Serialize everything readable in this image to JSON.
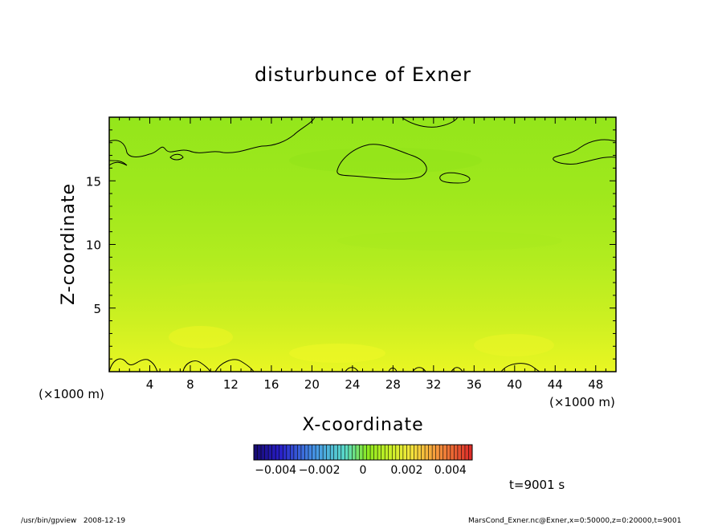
{
  "chart_data": {
    "type": "heatmap",
    "title": "disturbunce of Exner",
    "xlabel": "X-coordinate",
    "ylabel": "Z-coordinate",
    "x_unit_left": "(×1000 m)",
    "x_unit_right": "(×1000 m)",
    "xlim": [
      0,
      50
    ],
    "ylim": [
      0,
      20
    ],
    "x_ticks": [
      4,
      8,
      12,
      16,
      20,
      24,
      28,
      32,
      36,
      40,
      44,
      48
    ],
    "y_ticks": [
      5,
      10,
      15
    ],
    "colorbar": {
      "range": [
        -0.005,
        0.005
      ],
      "tick_labels": [
        "−0.004",
        "−0.002",
        "0",
        "0.002",
        "0.004"
      ],
      "tick_values": [
        -0.004,
        -0.002,
        0,
        0.002,
        0.004
      ],
      "bands": 60
    },
    "field_rows": [
      {
        "z": 19.5,
        "value": 0.0008
      },
      {
        "z": 17.0,
        "value": 0.001
      },
      {
        "z": 14.0,
        "value": 0.0012
      },
      {
        "z": 10.0,
        "value": 0.0014
      },
      {
        "z": 6.0,
        "value": 0.0017
      },
      {
        "z": 2.5,
        "value": 0.0021
      },
      {
        "z": 0.5,
        "value": 0.0023
      }
    ],
    "time_label": "t=9001 s"
  },
  "footer": {
    "left": "/usr/bin/gpview   2008-12-19",
    "right": "MarsCond_Exner.nc@Exner,x=0:50000,z=0:20000,t=9001"
  },
  "colors": {
    "field_top": "#8fe81a",
    "field_bottom": "#e7f522",
    "axis": "#000000"
  }
}
